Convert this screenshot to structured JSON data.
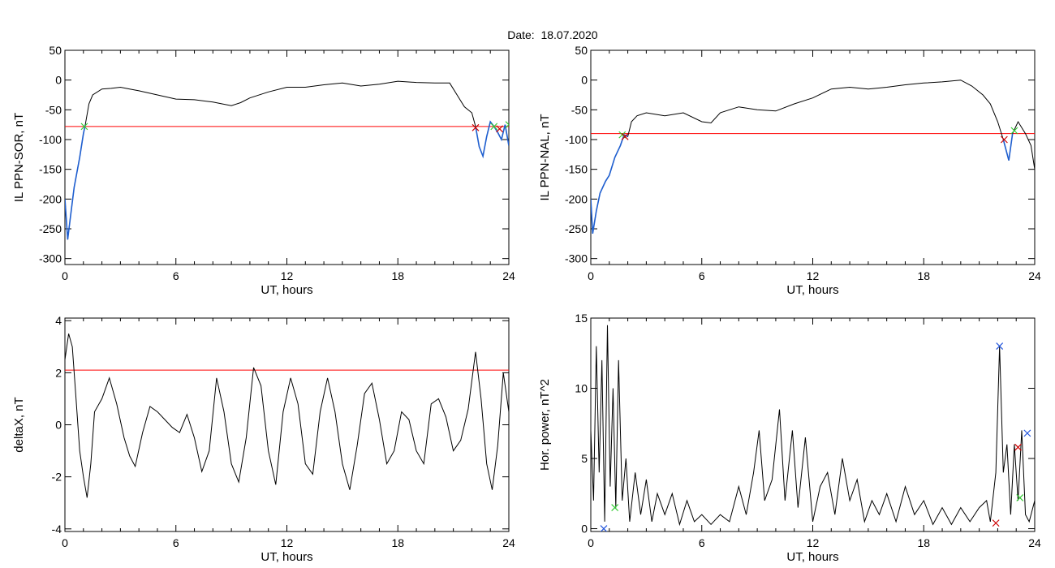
{
  "header": {
    "date_label": "Date:",
    "date_value": "18.07.2020"
  },
  "colors": {
    "line": "#000000",
    "threshold": "#ff0000",
    "highlight": "#1f5fd0",
    "marker_green": "#33cc33",
    "marker_red": "#cc0000",
    "marker_blue": "#2255dd"
  },
  "chart_data": [
    {
      "id": "il_sor",
      "type": "line",
      "ylabel": "IL PPN-SOR, nT",
      "xlabel": "UT, hours",
      "xlim": [
        0,
        24
      ],
      "ylim": [
        -310,
        50
      ],
      "xticks": [
        "0",
        "6",
        "12",
        "18",
        "24"
      ],
      "yticks": [
        "50",
        "0",
        "-50",
        "-100",
        "-150",
        "-200",
        "-250",
        "-300"
      ],
      "threshold": -78,
      "series": [
        {
          "values": [
            [
              0,
              -200
            ],
            [
              0.15,
              -268
            ],
            [
              0.3,
              -230
            ],
            [
              0.5,
              -180
            ],
            [
              0.8,
              -130
            ],
            [
              1.0,
              -90
            ],
            [
              1.1,
              -75
            ],
            [
              1.3,
              -40
            ],
            [
              1.5,
              -25
            ],
            [
              2,
              -15
            ],
            [
              2.5,
              -14
            ],
            [
              3,
              -12
            ],
            [
              3.5,
              -15
            ],
            [
              4,
              -18
            ],
            [
              5,
              -25
            ],
            [
              6,
              -32
            ],
            [
              7,
              -33
            ],
            [
              8,
              -37
            ],
            [
              9,
              -43
            ],
            [
              9.5,
              -38
            ],
            [
              10,
              -30
            ],
            [
              11,
              -20
            ],
            [
              12,
              -12
            ],
            [
              13,
              -12
            ],
            [
              14,
              -8
            ],
            [
              15,
              -5
            ],
            [
              16,
              -10
            ],
            [
              17,
              -7
            ],
            [
              18,
              -2
            ],
            [
              19,
              -4
            ],
            [
              20,
              -5
            ],
            [
              20.8,
              -5
            ],
            [
              21.2,
              -25
            ],
            [
              21.6,
              -45
            ],
            [
              22.0,
              -55
            ],
            [
              22.2,
              -78
            ],
            [
              22.4,
              -112
            ],
            [
              22.6,
              -128
            ],
            [
              22.8,
              -95
            ],
            [
              23.0,
              -70
            ],
            [
              23.2,
              -78
            ],
            [
              23.4,
              -88
            ],
            [
              23.6,
              -100
            ],
            [
              23.8,
              -75
            ],
            [
              24,
              -110
            ]
          ]
        }
      ],
      "highlight_segments": [
        [
          0,
          1.1
        ],
        [
          22.1,
          24
        ]
      ],
      "markers": [
        {
          "x": 1.05,
          "y": -78,
          "color": "green"
        },
        {
          "x": 22.2,
          "y": -80,
          "color": "red"
        },
        {
          "x": 23.2,
          "y": -78,
          "color": "green"
        },
        {
          "x": 23.5,
          "y": -82,
          "color": "red"
        },
        {
          "x": 24.0,
          "y": -75,
          "color": "green"
        }
      ]
    },
    {
      "id": "il_nal",
      "type": "line",
      "ylabel": "IL PPN-NAL, nT",
      "xlabel": "UT, hours",
      "xlim": [
        0,
        24
      ],
      "ylim": [
        -310,
        50
      ],
      "xticks": [
        "0",
        "6",
        "12",
        "18",
        "24"
      ],
      "yticks": [
        "50",
        "0",
        "-50",
        "-100",
        "-150",
        "-200",
        "-250",
        "-300"
      ],
      "threshold": -90,
      "series": [
        {
          "values": [
            [
              0,
              -200
            ],
            [
              0.1,
              -258
            ],
            [
              0.3,
              -220
            ],
            [
              0.5,
              -190
            ],
            [
              0.8,
              -170
            ],
            [
              1.0,
              -160
            ],
            [
              1.3,
              -130
            ],
            [
              1.6,
              -110
            ],
            [
              1.8,
              -92
            ],
            [
              2.0,
              -95
            ],
            [
              2.2,
              -70
            ],
            [
              2.5,
              -60
            ],
            [
              3,
              -55
            ],
            [
              4,
              -60
            ],
            [
              5,
              -55
            ],
            [
              6,
              -70
            ],
            [
              6.5,
              -72
            ],
            [
              7,
              -55
            ],
            [
              8,
              -45
            ],
            [
              9,
              -50
            ],
            [
              10,
              -52
            ],
            [
              11,
              -40
            ],
            [
              12,
              -30
            ],
            [
              13,
              -15
            ],
            [
              14,
              -12
            ],
            [
              15,
              -15
            ],
            [
              16,
              -12
            ],
            [
              17,
              -8
            ],
            [
              18,
              -5
            ],
            [
              19,
              -3
            ],
            [
              20,
              0
            ],
            [
              20.6,
              -10
            ],
            [
              21.2,
              -25
            ],
            [
              21.6,
              -40
            ],
            [
              22.0,
              -70
            ],
            [
              22.3,
              -100
            ],
            [
              22.6,
              -135
            ],
            [
              22.8,
              -90
            ],
            [
              23.1,
              -70
            ],
            [
              23.5,
              -90
            ],
            [
              23.8,
              -110
            ],
            [
              24,
              -150
            ]
          ]
        }
      ],
      "highlight_segments": [
        [
          0,
          2.0
        ],
        [
          22.2,
          23.0
        ]
      ],
      "markers": [
        {
          "x": 1.7,
          "y": -92,
          "color": "green"
        },
        {
          "x": 1.85,
          "y": -95,
          "color": "red"
        },
        {
          "x": 22.35,
          "y": -100,
          "color": "red"
        },
        {
          "x": 22.9,
          "y": -85,
          "color": "green"
        }
      ]
    },
    {
      "id": "deltax",
      "type": "line",
      "ylabel": "deltaX, nT",
      "xlabel": "UT, hours",
      "xlim": [
        0,
        24
      ],
      "ylim": [
        -4.1,
        4.1
      ],
      "xticks": [
        "0",
        "6",
        "12",
        "18",
        "24"
      ],
      "yticks": [
        "4",
        "2",
        "0",
        "-2",
        "-4"
      ],
      "threshold": 2.1,
      "series": [
        {
          "values": [
            [
              0,
              2.5
            ],
            [
              0.2,
              3.5
            ],
            [
              0.4,
              3.0
            ],
            [
              0.6,
              1.0
            ],
            [
              0.8,
              -1.0
            ],
            [
              1.0,
              -2.0
            ],
            [
              1.2,
              -2.8
            ],
            [
              1.4,
              -1.5
            ],
            [
              1.6,
              0.5
            ],
            [
              2.0,
              1.0
            ],
            [
              2.4,
              1.8
            ],
            [
              2.8,
              0.8
            ],
            [
              3.2,
              -0.5
            ],
            [
              3.5,
              -1.2
            ],
            [
              3.8,
              -1.6
            ],
            [
              4.2,
              -0.3
            ],
            [
              4.6,
              0.7
            ],
            [
              5.0,
              0.5
            ],
            [
              5.4,
              0.2
            ],
            [
              5.8,
              -0.1
            ],
            [
              6.2,
              -0.3
            ],
            [
              6.6,
              0.4
            ],
            [
              7.0,
              -0.5
            ],
            [
              7.4,
              -1.8
            ],
            [
              7.8,
              -1.0
            ],
            [
              8.2,
              1.8
            ],
            [
              8.6,
              0.5
            ],
            [
              9.0,
              -1.5
            ],
            [
              9.4,
              -2.2
            ],
            [
              9.8,
              -0.5
            ],
            [
              10.2,
              2.2
            ],
            [
              10.6,
              1.5
            ],
            [
              11.0,
              -1.0
            ],
            [
              11.4,
              -2.3
            ],
            [
              11.8,
              0.5
            ],
            [
              12.2,
              1.8
            ],
            [
              12.6,
              0.8
            ],
            [
              13.0,
              -1.5
            ],
            [
              13.4,
              -1.9
            ],
            [
              13.8,
              0.5
            ],
            [
              14.2,
              1.8
            ],
            [
              14.6,
              0.5
            ],
            [
              15.0,
              -1.5
            ],
            [
              15.4,
              -2.5
            ],
            [
              15.8,
              -0.8
            ],
            [
              16.2,
              1.2
            ],
            [
              16.6,
              1.6
            ],
            [
              17.0,
              0.2
            ],
            [
              17.4,
              -1.5
            ],
            [
              17.8,
              -1.0
            ],
            [
              18.2,
              0.5
            ],
            [
              18.6,
              0.2
            ],
            [
              19.0,
              -1.0
            ],
            [
              19.4,
              -1.5
            ],
            [
              19.8,
              0.8
            ],
            [
              20.2,
              1.0
            ],
            [
              20.6,
              0.3
            ],
            [
              21.0,
              -1.0
            ],
            [
              21.4,
              -0.6
            ],
            [
              21.8,
              0.6
            ],
            [
              22.2,
              2.8
            ],
            [
              22.5,
              1.0
            ],
            [
              22.8,
              -1.5
            ],
            [
              23.1,
              -2.5
            ],
            [
              23.4,
              -0.8
            ],
            [
              23.7,
              2.0
            ],
            [
              24,
              0.5
            ]
          ]
        }
      ]
    },
    {
      "id": "hor_power",
      "type": "line",
      "ylabel": "Hor. power, nT^2",
      "xlabel": "UT, hours",
      "xlim": [
        0,
        24
      ],
      "ylim": [
        -0.2,
        15
      ],
      "xticks": [
        "0",
        "6",
        "12",
        "18",
        "24"
      ],
      "yticks": [
        "15",
        "10",
        "5",
        "0"
      ],
      "series": [
        {
          "values": [
            [
              0,
              7
            ],
            [
              0.15,
              2
            ],
            [
              0.3,
              13
            ],
            [
              0.45,
              4
            ],
            [
              0.6,
              12
            ],
            [
              0.75,
              0.5
            ],
            [
              0.9,
              14.5
            ],
            [
              1.05,
              3
            ],
            [
              1.2,
              10
            ],
            [
              1.35,
              1.5
            ],
            [
              1.5,
              12
            ],
            [
              1.7,
              2
            ],
            [
              1.9,
              5
            ],
            [
              2.1,
              0.5
            ],
            [
              2.4,
              4
            ],
            [
              2.7,
              1
            ],
            [
              3.0,
              3.5
            ],
            [
              3.3,
              0.5
            ],
            [
              3.6,
              2.5
            ],
            [
              4.0,
              1
            ],
            [
              4.4,
              2.5
            ],
            [
              4.8,
              0.3
            ],
            [
              5.2,
              2
            ],
            [
              5.6,
              0.5
            ],
            [
              6.0,
              1
            ],
            [
              6.5,
              0.3
            ],
            [
              7.0,
              1
            ],
            [
              7.5,
              0.5
            ],
            [
              8.0,
              3
            ],
            [
              8.4,
              1
            ],
            [
              8.8,
              4
            ],
            [
              9.1,
              7
            ],
            [
              9.4,
              2
            ],
            [
              9.8,
              3.5
            ],
            [
              10.2,
              8.5
            ],
            [
              10.5,
              2
            ],
            [
              10.9,
              7
            ],
            [
              11.2,
              1.5
            ],
            [
              11.6,
              6.5
            ],
            [
              12.0,
              0.5
            ],
            [
              12.4,
              3
            ],
            [
              12.8,
              4
            ],
            [
              13.2,
              1
            ],
            [
              13.6,
              5
            ],
            [
              14.0,
              2
            ],
            [
              14.4,
              3.5
            ],
            [
              14.8,
              0.5
            ],
            [
              15.2,
              2
            ],
            [
              15.6,
              1
            ],
            [
              16.0,
              2.5
            ],
            [
              16.5,
              0.5
            ],
            [
              17.0,
              3
            ],
            [
              17.5,
              1
            ],
            [
              18.0,
              2
            ],
            [
              18.5,
              0.3
            ],
            [
              19.0,
              1.5
            ],
            [
              19.5,
              0.3
            ],
            [
              20.0,
              1.5
            ],
            [
              20.5,
              0.5
            ],
            [
              21.0,
              1.5
            ],
            [
              21.4,
              2
            ],
            [
              21.6,
              0.5
            ],
            [
              21.9,
              4
            ],
            [
              22.1,
              13
            ],
            [
              22.3,
              4
            ],
            [
              22.5,
              6
            ],
            [
              22.7,
              1
            ],
            [
              22.9,
              6
            ],
            [
              23.1,
              2
            ],
            [
              23.3,
              7
            ],
            [
              23.5,
              1
            ],
            [
              23.7,
              0.5
            ],
            [
              24,
              2
            ]
          ]
        }
      ],
      "markers": [
        {
          "x": 0.7,
          "y": 0.0,
          "color": "blue"
        },
        {
          "x": 1.3,
          "y": 1.5,
          "color": "green"
        },
        {
          "x": 21.9,
          "y": 0.4,
          "color": "red"
        },
        {
          "x": 22.1,
          "y": 13.0,
          "color": "blue"
        },
        {
          "x": 23.1,
          "y": 5.8,
          "color": "red"
        },
        {
          "x": 23.2,
          "y": 2.2,
          "color": "green"
        },
        {
          "x": 23.6,
          "y": 6.8,
          "color": "blue"
        }
      ]
    }
  ]
}
